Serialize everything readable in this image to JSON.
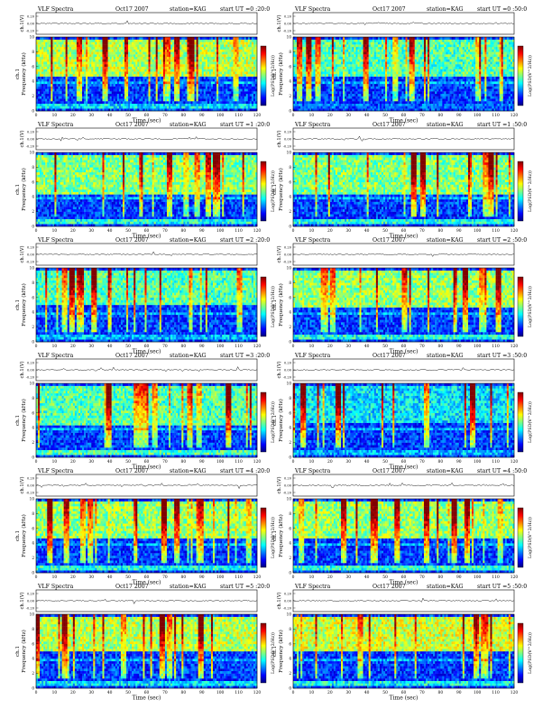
{
  "header": {
    "title": "VLF Spectra",
    "date": "Oct17 2007",
    "station": "station=KAG",
    "start_prefix": "start  UT ="
  },
  "panels": [
    {
      "start": "0 :20:0",
      "bands": [
        [
          0.5,
          0.95,
          0.35
        ],
        [
          4.6,
          9.8,
          0.55
        ]
      ]
    },
    {
      "start": "0 :50:0",
      "bands": [
        [
          0.5,
          0.95,
          0.2
        ],
        [
          4.6,
          9.8,
          0.45
        ]
      ]
    },
    {
      "start": "1 :20:0",
      "bands": [
        [
          0.5,
          0.95,
          0.4
        ],
        [
          4.2,
          9.8,
          0.5
        ]
      ]
    },
    {
      "start": "1 :50:0",
      "bands": [
        [
          0.5,
          0.95,
          0.4
        ],
        [
          4.2,
          9.8,
          0.5
        ]
      ]
    },
    {
      "start": "2 :20:0",
      "bands": [
        [
          0.5,
          0.95,
          0.3
        ],
        [
          5.0,
          9.8,
          0.45
        ]
      ]
    },
    {
      "start": "2 :50:0",
      "bands": [
        [
          0.5,
          0.95,
          0.4
        ],
        [
          4.6,
          9.8,
          0.52
        ]
      ]
    },
    {
      "start": "3 :20:0",
      "bands": [
        [
          0.5,
          0.95,
          0.45
        ],
        [
          4.2,
          9.8,
          0.45
        ]
      ]
    },
    {
      "start": "3 :50:0",
      "bands": [
        [
          0.5,
          0.95,
          0.3
        ],
        [
          4.6,
          9.8,
          0.35
        ]
      ]
    },
    {
      "start": "4 :20:0",
      "bands": [
        [
          0.5,
          0.95,
          0.4
        ],
        [
          4.6,
          9.8,
          0.52
        ]
      ]
    },
    {
      "start": "4 :50:0",
      "bands": [
        [
          0.5,
          0.95,
          0.42
        ],
        [
          4.6,
          9.8,
          0.52
        ]
      ]
    },
    {
      "start": "5 :20:0",
      "bands": [
        [
          0.5,
          0.95,
          0.35
        ],
        [
          5.0,
          9.8,
          0.55
        ]
      ]
    },
    {
      "start": "5 :50:0",
      "bands": [
        [
          0.5,
          0.95,
          0.38
        ],
        [
          5.0,
          9.8,
          0.58
        ]
      ]
    }
  ],
  "chart_data": {
    "type": "heatmap",
    "xlabel": "Time  (sec)",
    "ylabel": "Frequency  (kHz)",
    "ylabel_top": "ch.1",
    "amp_label": "ch.1(V)",
    "cbar_label": "Log(PSD(V^2/Hz))",
    "xlim": [
      0,
      120
    ],
    "ylim": [
      0,
      10
    ],
    "xticks": [
      0,
      10,
      20,
      30,
      40,
      50,
      60,
      70,
      80,
      90,
      100,
      110,
      120
    ],
    "yticks": [
      0,
      2,
      4,
      6,
      8,
      10
    ],
    "amp_ticks": [
      "0.20",
      "0.00",
      "-0.20"
    ],
    "colors": [
      "#00007f",
      "#0000ff",
      "#007fff",
      "#00ffff",
      "#7fff7f",
      "#ffff00",
      "#ff7f00",
      "#ff0000",
      "#7f0000"
    ]
  }
}
